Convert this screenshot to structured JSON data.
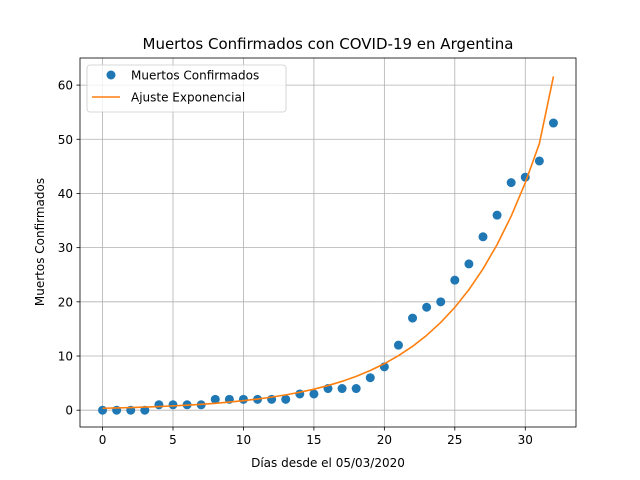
{
  "chart_data": {
    "type": "scatter",
    "title": "Muertos Confirmados con COVID-19 en Argentina",
    "xlabel": "Días desde el 05/03/2020",
    "ylabel": "Muertos Confirmados",
    "xlim": [
      -1.6,
      33.6
    ],
    "ylim": [
      -3.1,
      65.0
    ],
    "xticks": [
      0,
      5,
      10,
      15,
      20,
      25,
      30
    ],
    "yticks": [
      0,
      10,
      20,
      30,
      40,
      50,
      60
    ],
    "grid": true,
    "legend_position": "top-left",
    "series": [
      {
        "name": "Muertos Confirmados",
        "kind": "points",
        "color": "#1f77b4",
        "x": [
          0,
          1,
          2,
          3,
          4,
          5,
          6,
          7,
          8,
          9,
          10,
          11,
          12,
          13,
          14,
          15,
          16,
          17,
          18,
          19,
          20,
          21,
          22,
          23,
          24,
          25,
          26,
          27,
          28,
          29,
          30,
          31,
          32
        ],
        "y": [
          0,
          0,
          0,
          0,
          1,
          1,
          1,
          1,
          2,
          2,
          2,
          2,
          2,
          2,
          3,
          3,
          4,
          4,
          4,
          6,
          8,
          12,
          17,
          19,
          20,
          24,
          27,
          32,
          36,
          42,
          43,
          46,
          53
        ]
      },
      {
        "name": "Ajuste Exponencial",
        "kind": "line",
        "color": "#ff7f0e",
        "x": [
          0,
          1,
          2,
          3,
          4,
          5,
          6,
          7,
          8,
          9,
          10,
          11,
          12,
          13,
          14,
          15,
          16,
          17,
          18,
          19,
          20,
          21,
          22,
          23,
          24,
          25,
          26,
          27,
          28,
          29,
          30,
          31,
          32
        ],
        "y": [
          0.36,
          0.42,
          0.49,
          0.58,
          0.68,
          0.8,
          0.93,
          1.09,
          1.28,
          1.5,
          1.76,
          2.06,
          2.41,
          2.83,
          3.31,
          3.88,
          4.55,
          5.33,
          6.25,
          7.33,
          8.59,
          10.06,
          11.79,
          13.82,
          16.2,
          18.98,
          22.25,
          26.07,
          30.56,
          35.81,
          41.97,
          49.19,
          61.6
        ]
      }
    ]
  }
}
